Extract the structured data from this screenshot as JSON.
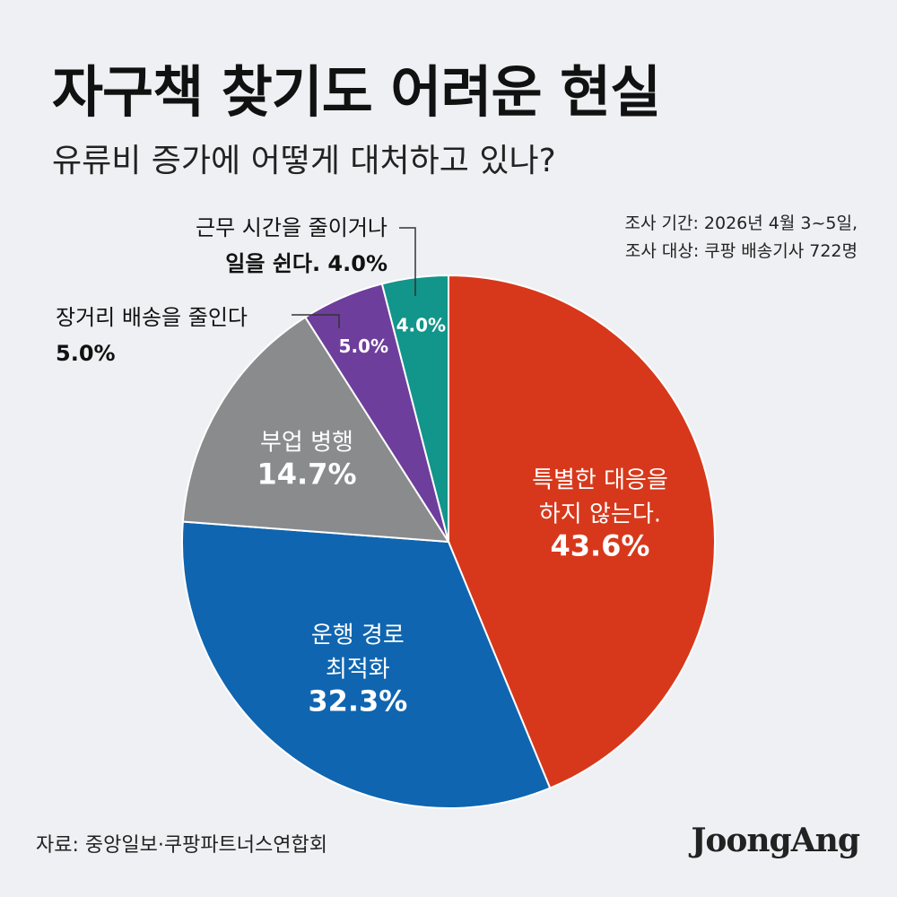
{
  "title": "자구책 찾기도 어려운 현실",
  "subtitle": "유류비 증가에 어떻게 대처하고 있나?",
  "survey": {
    "period": "조사 기간: 2026년 4월 3~5일,",
    "target": "조사 대상: 쿠팡 배송기사 722명"
  },
  "source": "자료: 중앙일보·쿠팡파트너스연합회",
  "logo": "JoongAng",
  "chart_data": {
    "type": "pie",
    "title": "유류비 증가에 어떻게 대처하고 있나?",
    "unit": "%",
    "slices": [
      {
        "label_lines": [
          "특별한 대응을",
          "하지 않는다."
        ],
        "value": 43.6,
        "value_label": "43.6%",
        "color": "#d7381b"
      },
      {
        "label_lines": [
          "운행 경로",
          "최적화"
        ],
        "value": 32.3,
        "value_label": "32.3%",
        "color": "#0f65b0"
      },
      {
        "label_lines": [
          "부업 병행"
        ],
        "value": 14.7,
        "value_label": "14.7%",
        "color": "#8a8b8d"
      },
      {
        "label": "장거리 배송을 줄인다",
        "value": 5.0,
        "value_label": "5.0%",
        "color": "#6e3e9c"
      },
      {
        "label_lines": [
          "근무 시간을 줄이거나",
          "일을 쉰다. 4.0%"
        ],
        "value": 4.0,
        "value_label": "4.0%",
        "color": "#12958a"
      }
    ]
  }
}
